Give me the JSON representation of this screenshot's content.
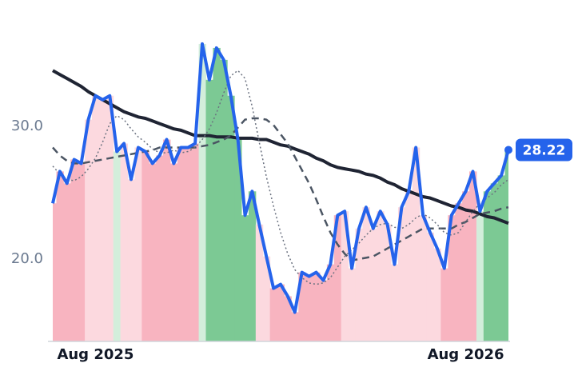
{
  "chart_data": {
    "type": "line",
    "x": [
      0,
      1,
      2,
      3,
      4,
      5,
      6,
      7,
      8,
      9,
      10,
      11,
      12,
      13,
      14,
      15,
      16,
      17,
      18,
      19,
      20,
      21,
      22,
      23,
      24,
      25,
      26,
      27,
      28,
      29,
      30,
      31,
      32,
      33,
      34,
      35,
      36,
      37,
      38,
      39,
      40,
      41,
      42,
      43,
      44,
      45,
      46,
      47,
      48,
      49,
      50,
      51,
      52,
      53,
      54,
      55,
      56,
      57,
      58,
      59,
      60,
      61,
      62,
      63,
      64
    ],
    "xlim": [
      0,
      64
    ],
    "xticks": [
      {
        "value": 6,
        "label": "Aug 2025"
      },
      {
        "value": 58,
        "label": "Aug 2026"
      }
    ],
    "ylim": [
      13.8,
      37.1
    ],
    "yticks": [
      {
        "value": 20,
        "label": "20.0"
      },
      {
        "value": 30,
        "label": "30.0"
      }
    ],
    "bar_colors": [
      "#f8b4c0",
      "#f8b4c0",
      "#f8b4c0",
      "#f8b4c0",
      "#f8b4c0",
      "#fcd9df",
      "#fcd9df",
      "#fcd9df",
      "#fcd9df",
      "#d3eedb",
      "#fcd9df",
      "#fcd9df",
      "#fcd9df",
      "#f8b4c0",
      "#f8b4c0",
      "#f8b4c0",
      "#f8b4c0",
      "#f8b4c0",
      "#f8b4c0",
      "#f8b4c0",
      "#f8b4c0",
      "#d3eedb",
      "#7cc994",
      "#7cc994",
      "#7cc994",
      "#7cc994",
      "#7cc994",
      "#7cc994",
      "#7cc994",
      "#fcd9df",
      "#fcd9df",
      "#f8b4c0",
      "#f8b4c0",
      "#f8b4c0",
      "#f8b4c0",
      "#f8b4c0",
      "#f8b4c0",
      "#f8b4c0",
      "#f8b4c0",
      "#f8b4c0",
      "#f8b4c0",
      "#fcd9df",
      "#fcd9df",
      "#fcd9df",
      "#fcd9df",
      "#fcd9df",
      "#fcd9df",
      "#fcd9df",
      "#fcd9df",
      "#fcd9df",
      "#fcd9df",
      "#fcd9df",
      "#fcd9df",
      "#fcd9df",
      "#fcd9df",
      "#f8b4c0",
      "#f8b4c0",
      "#f8b4c0",
      "#f8b4c0",
      "#f8b4c0",
      "#d3eedb",
      "#7cc994",
      "#7cc994",
      "#7cc994",
      "#7cc994"
    ],
    "series": [
      {
        "color": "#1f2433",
        "style": "solid",
        "width": 4,
        "values": [
          34.2,
          33.9,
          33.6,
          33.3,
          33.0,
          32.6,
          32.3,
          32.0,
          31.7,
          31.4,
          31.1,
          30.9,
          30.7,
          30.6,
          30.4,
          30.2,
          30.0,
          29.8,
          29.7,
          29.5,
          29.3,
          29.3,
          29.3,
          29.2,
          29.2,
          29.2,
          29.1,
          29.1,
          29.1,
          29.0,
          29.0,
          28.8,
          28.6,
          28.5,
          28.3,
          28.1,
          27.9,
          27.6,
          27.4,
          27.1,
          26.9,
          26.8,
          26.7,
          26.6,
          26.4,
          26.3,
          26.1,
          25.8,
          25.6,
          25.3,
          25.1,
          24.9,
          24.7,
          24.6,
          24.4,
          24.2,
          24.0,
          23.9,
          23.7,
          23.6,
          23.4,
          23.2,
          23.1,
          22.9,
          22.7
        ]
      },
      {
        "color": "#4b5563",
        "style": "dashed",
        "width": 2.5,
        "values": [
          28.4,
          27.8,
          27.4,
          27.2,
          27.2,
          27.3,
          27.4,
          27.5,
          27.6,
          27.7,
          27.8,
          27.9,
          28.0,
          28.1,
          28.2,
          28.4,
          28.4,
          28.4,
          28.4,
          28.4,
          28.4,
          28.5,
          28.6,
          28.8,
          29.0,
          29.3,
          29.9,
          30.5,
          30.6,
          30.6,
          30.5,
          30.1,
          29.4,
          28.7,
          27.7,
          26.7,
          25.7,
          24.5,
          23.2,
          22.0,
          21.1,
          20.4,
          19.9,
          20.0,
          20.1,
          20.2,
          20.5,
          20.8,
          21.1,
          21.4,
          21.7,
          22.0,
          22.3,
          22.3,
          22.3,
          22.3,
          22.3,
          22.6,
          22.8,
          23.1,
          23.4,
          23.5,
          23.6,
          23.8,
          23.9
        ]
      },
      {
        "color": "#6b7280",
        "style": "dotted",
        "width": 1.5,
        "values": [
          27.0,
          26.4,
          26.0,
          25.9,
          26.2,
          26.8,
          27.6,
          28.8,
          30.2,
          30.8,
          30.5,
          29.8,
          29.2,
          28.8,
          28.3,
          28.0,
          28.0,
          28.2,
          28.0,
          28.1,
          28.4,
          29.0,
          29.8,
          31.0,
          32.5,
          33.8,
          34.2,
          33.6,
          31.5,
          28.8,
          26.2,
          24.0,
          22.0,
          20.4,
          19.2,
          18.6,
          18.2,
          18.1,
          18.2,
          18.6,
          19.4,
          20.2,
          20.7,
          21.2,
          21.8,
          22.3,
          22.6,
          22.7,
          22.4,
          22.3,
          22.6,
          23.1,
          23.4,
          23.1,
          22.6,
          22.0,
          21.8,
          22.0,
          22.8,
          23.6,
          24.2,
          24.6,
          25.0,
          25.6,
          26.0
        ]
      },
      {
        "color": "#2563eb",
        "style": "solid",
        "width": 4,
        "values": [
          24.2,
          26.6,
          25.7,
          27.5,
          27.2,
          30.5,
          32.3,
          32.0,
          32.3,
          28.1,
          28.7,
          26.0,
          28.4,
          28.1,
          27.2,
          27.8,
          29.0,
          27.2,
          28.4,
          28.4,
          28.7,
          36.2,
          33.5,
          35.9,
          35.0,
          32.3,
          29.0,
          23.3,
          25.1,
          22.6,
          20.2,
          17.8,
          18.1,
          17.2,
          16.0,
          19.0,
          18.7,
          19.0,
          18.4,
          19.6,
          23.3,
          23.6,
          19.3,
          22.3,
          23.9,
          22.3,
          23.6,
          22.6,
          19.6,
          23.9,
          25.1,
          28.4,
          23.3,
          22.0,
          20.8,
          19.3,
          23.3,
          24.2,
          25.1,
          26.6,
          23.6,
          25.1,
          25.7,
          26.3,
          28.22
        ]
      }
    ]
  }
}
